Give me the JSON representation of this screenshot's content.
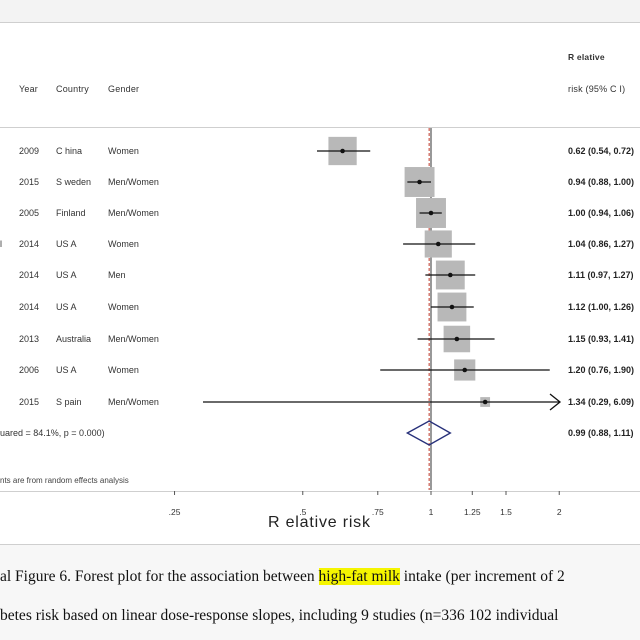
{
  "headers": {
    "year": "Year",
    "country": "Country",
    "gender": "Gender",
    "rr_line1": "R elative",
    "rr_line2": "risk (95% C I)"
  },
  "rows": [
    {
      "prefix": "",
      "year": "2009",
      "country": "C hina",
      "gender": "Women",
      "ci_text": "0.62 (0.54, 0.72)"
    },
    {
      "prefix": "",
      "year": "2015",
      "country": "S weden",
      "gender": "Men/Women",
      "ci_text": "0.94 (0.88, 1.00)"
    },
    {
      "prefix": "",
      "year": "2005",
      "country": "Finland",
      "gender": "Men/Women",
      "ci_text": "1.00 (0.94, 1.06)"
    },
    {
      "prefix": "l",
      "year": "2014",
      "country": "US A",
      "gender": "Women",
      "ci_text": "1.04 (0.86, 1.27)"
    },
    {
      "prefix": "",
      "year": "2014",
      "country": "US A",
      "gender": "Men",
      "ci_text": "1.11 (0.97, 1.27)"
    },
    {
      "prefix": "",
      "year": "2014",
      "country": "US A",
      "gender": "Women",
      "ci_text": "1.12 (1.00, 1.26)"
    },
    {
      "prefix": "",
      "year": "2013",
      "country": "Australia",
      "gender": "Men/Women",
      "ci_text": "1.15 (0.93, 1.41)"
    },
    {
      "prefix": "",
      "year": "2006",
      "country": "US A",
      "gender": "Women",
      "ci_text": "1.20 (0.76, 1.90)"
    },
    {
      "prefix": "",
      "year": "2015",
      "country": "S pain",
      "gender": "Men/Women",
      "ci_text": "1.34 (0.29, 6.09)"
    }
  ],
  "overall": {
    "label": "uared = 84.1%, p = 0.000)",
    "ci_text": "0.99 (0.88, 1.11)"
  },
  "footnote": "nts are from random effects analysis",
  "caption": {
    "line1_pre": "al Figure 6. Forest plot for the association between ",
    "line1_highlight": "high-fat milk",
    "line1_post": " intake (per increment of 2",
    "line2": "betes risk based on linear dose-response slopes, including 9 studies (n=336 102 individual"
  },
  "chart_data": {
    "type": "forest",
    "xlabel": "R elative risk",
    "scale": "log",
    "xlim": [
      0.2,
      2.7
    ],
    "xticks": [
      0.25,
      0.5,
      0.75,
      1,
      1.25,
      1.5,
      2
    ],
    "xtick_labels": [
      ".25",
      ".5",
      ".75",
      "1",
      "1.25",
      "1.5",
      "2"
    ],
    "reference_line": 1,
    "overall_line": 0.99,
    "studies": [
      {
        "rr": 0.62,
        "lower": 0.54,
        "upper": 0.72,
        "weight": 12.5
      },
      {
        "rr": 0.94,
        "lower": 0.88,
        "upper": 1.0,
        "weight": 14.0
      },
      {
        "rr": 1.0,
        "lower": 0.94,
        "upper": 1.06,
        "weight": 14.0
      },
      {
        "rr": 1.04,
        "lower": 0.86,
        "upper": 1.27,
        "weight": 11.5
      },
      {
        "rr": 1.11,
        "lower": 0.97,
        "upper": 1.27,
        "weight": 13.0
      },
      {
        "rr": 1.12,
        "lower": 1.0,
        "upper": 1.26,
        "weight": 13.0
      },
      {
        "rr": 1.15,
        "lower": 0.93,
        "upper": 1.41,
        "weight": 11.0
      },
      {
        "rr": 1.2,
        "lower": 0.76,
        "upper": 1.9,
        "weight": 7.0
      },
      {
        "rr": 1.34,
        "lower": 0.29,
        "upper": 6.09,
        "weight": 1.5
      }
    ],
    "overall": {
      "rr": 0.99,
      "lower": 0.88,
      "upper": 1.11
    },
    "colors": {
      "box": "#b8b8b8",
      "diamond": "#27307a",
      "reference": "#555555",
      "overall_line": "#c0392b",
      "ci": "#111111"
    }
  }
}
